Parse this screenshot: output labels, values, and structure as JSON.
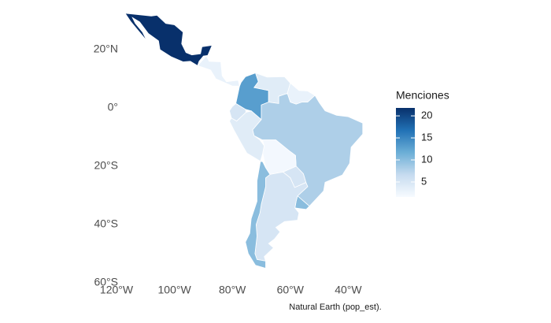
{
  "chart_data": {
    "type": "choropleth",
    "caption": "Natural Earth (pop_est).",
    "xlim": [
      -120,
      -34
    ],
    "ylim": [
      -60,
      33
    ],
    "xticks": [
      {
        "value": -120,
        "label": "120°W"
      },
      {
        "value": -100,
        "label": "100°W"
      },
      {
        "value": -80,
        "label": "80°W"
      },
      {
        "value": -60,
        "label": "60°W"
      },
      {
        "value": -40,
        "label": "40°W"
      }
    ],
    "yticks": [
      {
        "value": 20,
        "label": "20°N"
      },
      {
        "value": 0,
        "label": "0°"
      },
      {
        "value": -20,
        "label": "20°S"
      },
      {
        "value": -40,
        "label": "40°S"
      },
      {
        "value": -60,
        "label": "60°S"
      }
    ],
    "legend": {
      "title": "Menciones",
      "ticks": [
        5,
        10,
        15,
        20
      ],
      "clim": [
        1.6,
        21.8
      ]
    },
    "colorscale": [
      "#f7fbff",
      "#c6dbef",
      "#6baed6",
      "#2171b5",
      "#08306b"
    ],
    "values": [
      22,
      3,
      13,
      4,
      3,
      5,
      4,
      8,
      2,
      5,
      10,
      5,
      10
    ]
  }
}
